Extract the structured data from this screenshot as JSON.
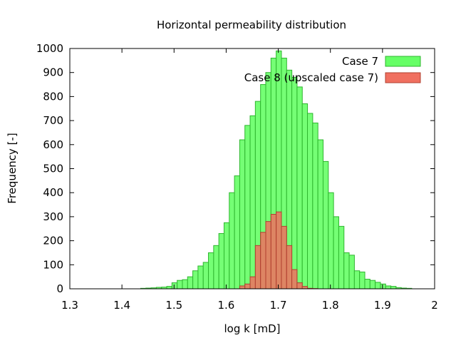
{
  "chart_data": {
    "type": "bar",
    "title": "Horizontal permeability distribution",
    "xlabel": "log k [mD]",
    "ylabel": "Frequency [-]",
    "xlim": [
      1.3,
      2.0
    ],
    "ylim": [
      0,
      1000
    ],
    "xticks": [
      "1.3",
      "1.4",
      "1.5",
      "1.6",
      "1.7",
      "1.8",
      "1.9",
      "2"
    ],
    "yticks": [
      "0",
      "100",
      "200",
      "300",
      "400",
      "500",
      "600",
      "700",
      "800",
      "900",
      "1000"
    ],
    "bin_width": 0.0101,
    "grid": false,
    "legend_position": "top-right",
    "series": [
      {
        "name": "Case 7",
        "color": "#66ff66",
        "edge_color": "#2fb52f",
        "x": [
          1.441,
          1.451,
          1.461,
          1.471,
          1.481,
          1.491,
          1.501,
          1.511,
          1.521,
          1.531,
          1.541,
          1.551,
          1.561,
          1.571,
          1.581,
          1.591,
          1.601,
          1.611,
          1.621,
          1.631,
          1.641,
          1.651,
          1.661,
          1.671,
          1.681,
          1.691,
          1.701,
          1.711,
          1.721,
          1.731,
          1.741,
          1.751,
          1.761,
          1.771,
          1.781,
          1.791,
          1.801,
          1.811,
          1.821,
          1.831,
          1.841,
          1.851,
          1.861,
          1.871,
          1.881,
          1.891,
          1.901,
          1.911,
          1.921,
          1.931,
          1.941,
          1.951
        ],
        "values": [
          2,
          3,
          4,
          6,
          7,
          10,
          25,
          35,
          38,
          50,
          75,
          95,
          110,
          150,
          180,
          230,
          275,
          400,
          470,
          620,
          680,
          720,
          780,
          850,
          900,
          960,
          990,
          960,
          910,
          880,
          840,
          770,
          730,
          690,
          620,
          530,
          400,
          300,
          260,
          150,
          140,
          75,
          70,
          40,
          35,
          27,
          20,
          12,
          10,
          5,
          3,
          2
        ]
      },
      {
        "name": "Case 8 (upscaled case 7)",
        "color": "#f07060",
        "edge_color": "#b04030",
        "x": [
          1.631,
          1.641,
          1.651,
          1.661,
          1.671,
          1.681,
          1.691,
          1.701,
          1.711,
          1.721,
          1.731,
          1.741,
          1.751,
          1.761,
          1.771
        ],
        "values": [
          12,
          20,
          50,
          180,
          235,
          280,
          310,
          320,
          260,
          180,
          80,
          25,
          10,
          2,
          1
        ]
      }
    ]
  }
}
